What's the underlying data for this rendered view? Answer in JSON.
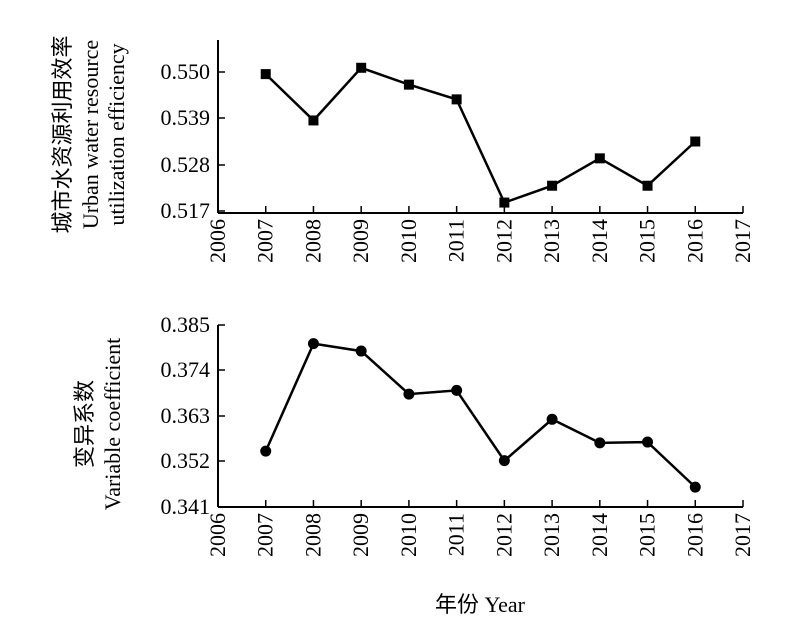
{
  "chart_data": [
    {
      "type": "line",
      "ylabel": [
        "城市水资源利用效率",
        "Urban water resource",
        "utilization efficiency"
      ],
      "x": [
        2007,
        2008,
        2009,
        2010,
        2011,
        2012,
        2013,
        2014,
        2015,
        2016
      ],
      "values": [
        0.5495,
        0.5385,
        0.551,
        0.547,
        0.5435,
        0.519,
        0.523,
        0.5295,
        0.523,
        0.5335
      ],
      "marker": "square",
      "xlim": [
        2006,
        2017
      ],
      "xticks": [
        "2006",
        "2007",
        "2008",
        "2009",
        "2010",
        "2011",
        "2012",
        "2013",
        "2014",
        "2015",
        "2016",
        "2017"
      ],
      "ylim": [
        0.517,
        0.5555
      ],
      "yticks": [
        "0.550",
        "0.539",
        "0.528",
        "0.517"
      ],
      "ytick_values": [
        0.55,
        0.539,
        0.528,
        0.517
      ],
      "grid": false
    },
    {
      "type": "line",
      "ylabel": [
        "变异系数",
        "Variable coefficient"
      ],
      "x": [
        2007,
        2008,
        2009,
        2010,
        2011,
        2012,
        2013,
        2014,
        2015,
        2016
      ],
      "values": [
        0.3545,
        0.3805,
        0.3787,
        0.3683,
        0.3692,
        0.3522,
        0.3622,
        0.3565,
        0.3567,
        0.3458
      ],
      "marker": "circle",
      "xlim": [
        2006,
        2017
      ],
      "xticks": [
        "2006",
        "2007",
        "2008",
        "2009",
        "2010",
        "2011",
        "2012",
        "2013",
        "2014",
        "2015",
        "2016",
        "2017"
      ],
      "ylim": [
        0.341,
        0.385
      ],
      "yticks": [
        "0.385",
        "0.374",
        "0.363",
        "0.352",
        "0.341"
      ],
      "ytick_values": [
        0.385,
        0.374,
        0.363,
        0.352,
        0.341
      ],
      "grid": false
    }
  ],
  "xlabel": "年份 Year",
  "colors": {
    "line": "#000000",
    "marker": "#000000",
    "axis": "#000000"
  }
}
